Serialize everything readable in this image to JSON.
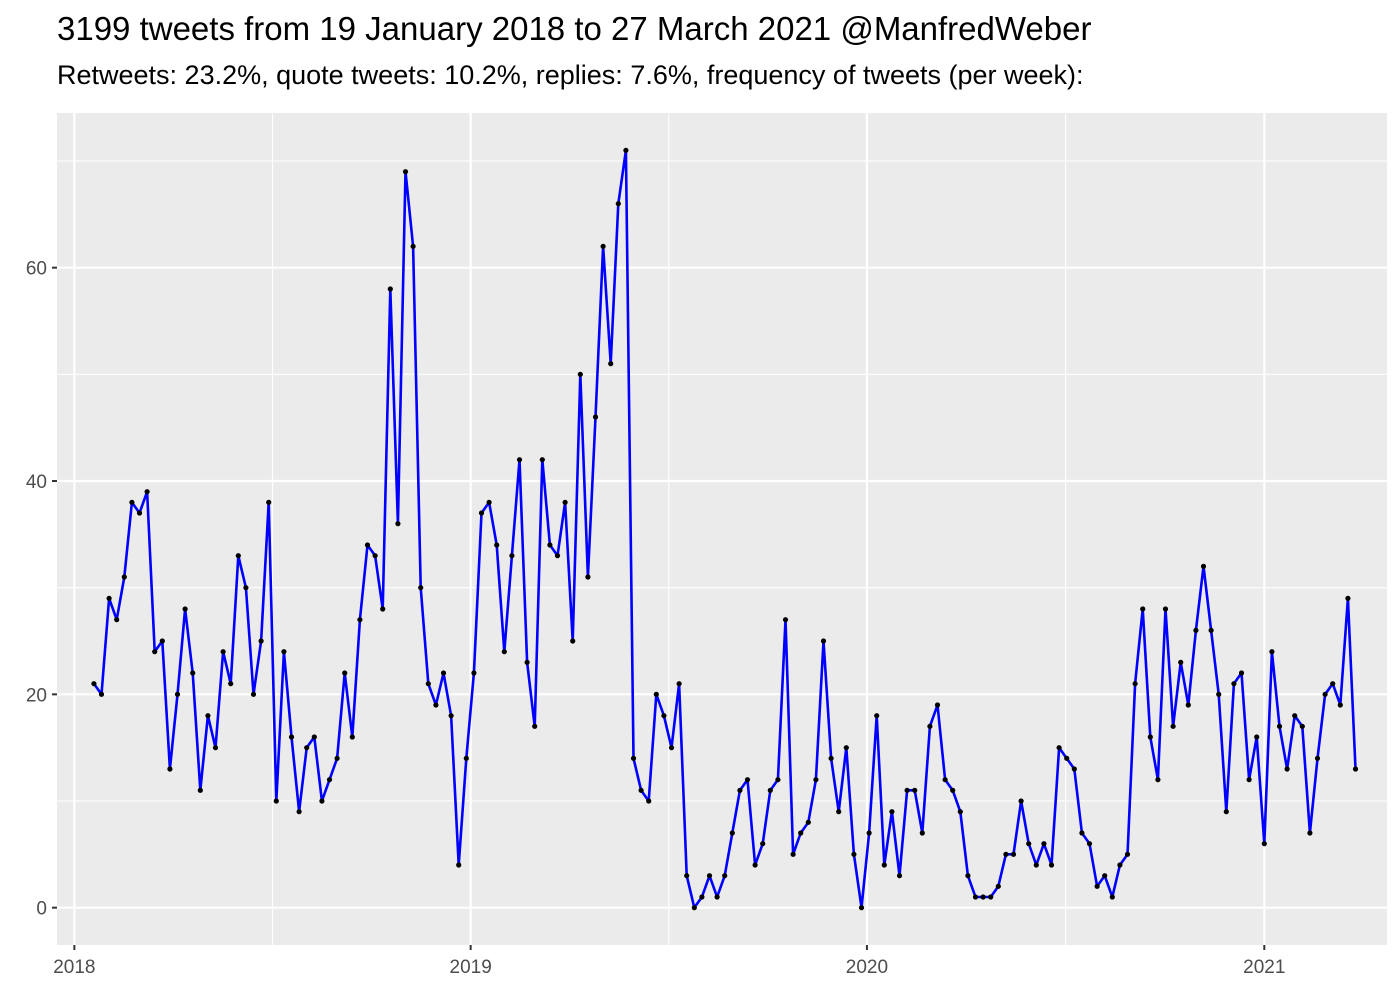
{
  "chart_data": {
    "type": "line",
    "title": "3199 tweets from 19 January 2018 to 27 March 2021 @ManfredWeber",
    "subtitle": "Retweets: 23.2%, quote tweets: 10.2%, replies: 7.6%, frequency of tweets (per week):",
    "xlabel": "",
    "ylabel": "",
    "x_tick_labels": [
      "2018",
      "2019",
      "2020",
      "2021"
    ],
    "y_tick_labels": [
      "0",
      "20",
      "40",
      "60"
    ],
    "x_range": [
      "2017-12-16",
      "2021-04-24"
    ],
    "ylim": [
      -3.5,
      74.5
    ],
    "grid": true,
    "series": [
      {
        "color": "#0000ff",
        "points": [
          [
            "2018-01-19",
            21
          ],
          [
            "2018-01-26",
            20
          ],
          [
            "2018-02-02",
            29
          ],
          [
            "2018-02-09",
            27
          ],
          [
            "2018-02-16",
            31
          ],
          [
            "2018-02-23",
            38
          ],
          [
            "2018-03-02",
            37
          ],
          [
            "2018-03-09",
            39
          ],
          [
            "2018-03-16",
            24
          ],
          [
            "2018-03-23",
            25
          ],
          [
            "2018-03-30",
            13
          ],
          [
            "2018-04-06",
            20
          ],
          [
            "2018-04-13",
            28
          ],
          [
            "2018-04-20",
            22
          ],
          [
            "2018-04-27",
            11
          ],
          [
            "2018-05-04",
            18
          ],
          [
            "2018-05-11",
            15
          ],
          [
            "2018-05-18",
            24
          ],
          [
            "2018-05-25",
            21
          ],
          [
            "2018-06-01",
            33
          ],
          [
            "2018-06-08",
            30
          ],
          [
            "2018-06-15",
            20
          ],
          [
            "2018-06-22",
            25
          ],
          [
            "2018-06-29",
            38
          ],
          [
            "2018-07-06",
            10
          ],
          [
            "2018-07-13",
            24
          ],
          [
            "2018-07-20",
            16
          ],
          [
            "2018-07-27",
            9
          ],
          [
            "2018-08-03",
            15
          ],
          [
            "2018-08-10",
            16
          ],
          [
            "2018-08-17",
            10
          ],
          [
            "2018-08-24",
            12
          ],
          [
            "2018-08-31",
            14
          ],
          [
            "2018-09-07",
            22
          ],
          [
            "2018-09-14",
            16
          ],
          [
            "2018-09-21",
            27
          ],
          [
            "2018-09-28",
            34
          ],
          [
            "2018-10-05",
            33
          ],
          [
            "2018-10-12",
            28
          ],
          [
            "2018-10-19",
            58
          ],
          [
            "2018-10-26",
            36
          ],
          [
            "2018-11-02",
            69
          ],
          [
            "2018-11-09",
            62
          ],
          [
            "2018-11-16",
            30
          ],
          [
            "2018-11-23",
            21
          ],
          [
            "2018-11-30",
            19
          ],
          [
            "2018-12-07",
            22
          ],
          [
            "2018-12-14",
            18
          ],
          [
            "2018-12-21",
            4
          ],
          [
            "2018-12-28",
            14
          ],
          [
            "2019-01-04",
            22
          ],
          [
            "2019-01-11",
            37
          ],
          [
            "2019-01-18",
            38
          ],
          [
            "2019-01-25",
            34
          ],
          [
            "2019-02-01",
            24
          ],
          [
            "2019-02-08",
            33
          ],
          [
            "2019-02-15",
            42
          ],
          [
            "2019-02-22",
            23
          ],
          [
            "2019-03-01",
            17
          ],
          [
            "2019-03-08",
            42
          ],
          [
            "2019-03-15",
            34
          ],
          [
            "2019-03-22",
            33
          ],
          [
            "2019-03-29",
            38
          ],
          [
            "2019-04-05",
            25
          ],
          [
            "2019-04-12",
            50
          ],
          [
            "2019-04-19",
            31
          ],
          [
            "2019-04-26",
            46
          ],
          [
            "2019-05-03",
            62
          ],
          [
            "2019-05-10",
            51
          ],
          [
            "2019-05-17",
            66
          ],
          [
            "2019-05-24",
            71
          ],
          [
            "2019-05-31",
            14
          ],
          [
            "2019-06-07",
            11
          ],
          [
            "2019-06-14",
            10
          ],
          [
            "2019-06-21",
            20
          ],
          [
            "2019-06-28",
            18
          ],
          [
            "2019-07-05",
            15
          ],
          [
            "2019-07-12",
            21
          ],
          [
            "2019-07-19",
            3
          ],
          [
            "2019-07-26",
            0
          ],
          [
            "2019-08-02",
            1
          ],
          [
            "2019-08-09",
            3
          ],
          [
            "2019-08-16",
            1
          ],
          [
            "2019-08-23",
            3
          ],
          [
            "2019-08-30",
            7
          ],
          [
            "2019-09-06",
            11
          ],
          [
            "2019-09-13",
            12
          ],
          [
            "2019-09-20",
            4
          ],
          [
            "2019-09-27",
            6
          ],
          [
            "2019-10-04",
            11
          ],
          [
            "2019-10-11",
            12
          ],
          [
            "2019-10-18",
            27
          ],
          [
            "2019-10-25",
            5
          ],
          [
            "2019-11-01",
            7
          ],
          [
            "2019-11-08",
            8
          ],
          [
            "2019-11-15",
            12
          ],
          [
            "2019-11-22",
            25
          ],
          [
            "2019-11-29",
            14
          ],
          [
            "2019-12-06",
            9
          ],
          [
            "2019-12-13",
            15
          ],
          [
            "2019-12-20",
            5
          ],
          [
            "2019-12-27",
            0
          ],
          [
            "2020-01-03",
            7
          ],
          [
            "2020-01-10",
            18
          ],
          [
            "2020-01-17",
            4
          ],
          [
            "2020-01-24",
            9
          ],
          [
            "2020-01-31",
            3
          ],
          [
            "2020-02-07",
            11
          ],
          [
            "2020-02-14",
            11
          ],
          [
            "2020-02-21",
            7
          ],
          [
            "2020-02-28",
            17
          ],
          [
            "2020-03-06",
            19
          ],
          [
            "2020-03-13",
            12
          ],
          [
            "2020-03-20",
            11
          ],
          [
            "2020-03-27",
            9
          ],
          [
            "2020-04-03",
            3
          ],
          [
            "2020-04-10",
            1
          ],
          [
            "2020-04-17",
            1
          ],
          [
            "2020-04-24",
            1
          ],
          [
            "2020-05-01",
            2
          ],
          [
            "2020-05-08",
            5
          ],
          [
            "2020-05-15",
            5
          ],
          [
            "2020-05-22",
            10
          ],
          [
            "2020-05-29",
            6
          ],
          [
            "2020-06-05",
            4
          ],
          [
            "2020-06-12",
            6
          ],
          [
            "2020-06-19",
            4
          ],
          [
            "2020-06-26",
            15
          ],
          [
            "2020-07-03",
            14
          ],
          [
            "2020-07-10",
            13
          ],
          [
            "2020-07-17",
            7
          ],
          [
            "2020-07-24",
            6
          ],
          [
            "2020-07-31",
            2
          ],
          [
            "2020-08-07",
            3
          ],
          [
            "2020-08-14",
            1
          ],
          [
            "2020-08-21",
            4
          ],
          [
            "2020-08-28",
            5
          ],
          [
            "2020-09-04",
            21
          ],
          [
            "2020-09-11",
            28
          ],
          [
            "2020-09-18",
            16
          ],
          [
            "2020-09-25",
            12
          ],
          [
            "2020-10-02",
            28
          ],
          [
            "2020-10-09",
            17
          ],
          [
            "2020-10-16",
            23
          ],
          [
            "2020-10-23",
            19
          ],
          [
            "2020-10-30",
            26
          ],
          [
            "2020-11-06",
            32
          ],
          [
            "2020-11-13",
            26
          ],
          [
            "2020-11-20",
            20
          ],
          [
            "2020-11-27",
            9
          ],
          [
            "2020-12-04",
            21
          ],
          [
            "2020-12-11",
            22
          ],
          [
            "2020-12-18",
            12
          ],
          [
            "2020-12-25",
            16
          ],
          [
            "2021-01-01",
            6
          ],
          [
            "2021-01-08",
            24
          ],
          [
            "2021-01-15",
            17
          ],
          [
            "2021-01-22",
            13
          ],
          [
            "2021-01-29",
            18
          ],
          [
            "2021-02-05",
            17
          ],
          [
            "2021-02-12",
            7
          ],
          [
            "2021-02-19",
            14
          ],
          [
            "2021-02-26",
            20
          ],
          [
            "2021-03-05",
            21
          ],
          [
            "2021-03-12",
            19
          ],
          [
            "2021-03-19",
            29
          ],
          [
            "2021-03-26",
            13
          ]
        ]
      }
    ]
  }
}
